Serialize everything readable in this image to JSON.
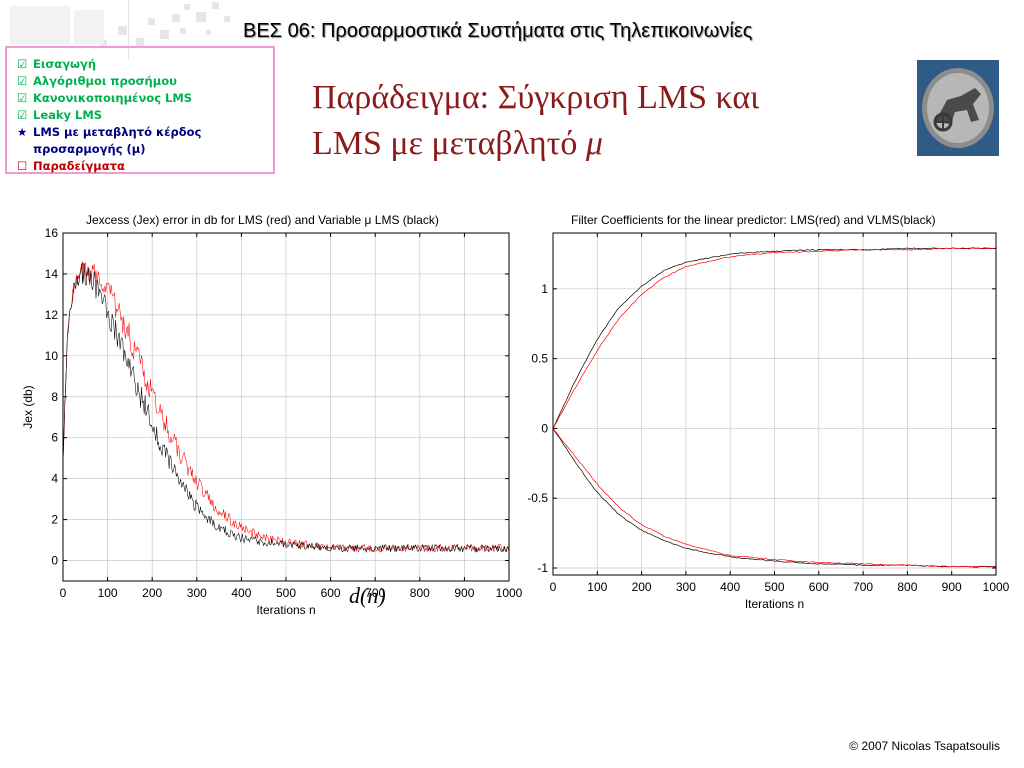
{
  "header": {
    "course_title": "ΒΕΣ 06: Προσαρμοστικά Συστήματα στις Τηλεπικοινωνίες"
  },
  "toc": {
    "items": [
      {
        "mark": "☑",
        "label": "Εισαγωγή",
        "state": "done"
      },
      {
        "mark": "☑",
        "label": "Αλγόριθμοι προσήμου",
        "state": "done"
      },
      {
        "mark": "☑",
        "label": "Κανονικοποιημένος LMS",
        "state": "done"
      },
      {
        "mark": "☑",
        "label": "Leaky LMS",
        "state": "done"
      },
      {
        "mark": "★",
        "label": "LMS με μεταβλητό κέρδος",
        "state": "current"
      },
      {
        "mark": "",
        "label": "προσαρμογής (μ)",
        "state": "current"
      },
      {
        "mark": "☐",
        "label": "Παραδείγματα",
        "state": "todo"
      }
    ]
  },
  "slide": {
    "title_line1": "Παράδειγμα: Σύγκριση LMS και",
    "title_line2": "LMS με μεταβλητό ",
    "title_mu": "μ"
  },
  "overlay_equation": "d(n)",
  "footer": {
    "copyright": "© 2007 Nicolas Tsapatsoulis"
  },
  "colors": {
    "title": "#8b1a1a",
    "toc_border": "#f29bd1",
    "lms": "#ff0000",
    "vlms": "#000000",
    "grid": "#c8c8c8"
  },
  "chart_data": [
    {
      "type": "line",
      "title": "Jexcess (Jex) error in db for LMS (red) and Variable μ LMS (black)",
      "xlabel": "Iterations n",
      "ylabel": "Jex (db)",
      "xlim": [
        0,
        1000
      ],
      "ylim": [
        -1,
        16
      ],
      "xticks": [
        0,
        100,
        200,
        300,
        400,
        500,
        600,
        700,
        800,
        900,
        1000
      ],
      "yticks": [
        0,
        2,
        4,
        6,
        8,
        10,
        12,
        14,
        16
      ],
      "grid": true,
      "series": [
        {
          "color": "#ff0000",
          "x": [
            0,
            10,
            25,
            50,
            75,
            100,
            150,
            200,
            250,
            300,
            350,
            400,
            450,
            500,
            600,
            700,
            800,
            900,
            1000
          ],
          "y": [
            5,
            11,
            13.5,
            14.3,
            14,
            13.3,
            10.9,
            8.1,
            5.7,
            3.8,
            2.4,
            1.6,
            1.1,
            0.9,
            0.6,
            0.6,
            0.6,
            0.6,
            0.6
          ]
        },
        {
          "color": "#000000",
          "x": [
            0,
            10,
            25,
            50,
            75,
            100,
            150,
            200,
            250,
            300,
            350,
            400,
            450,
            500,
            600,
            700,
            800,
            900,
            1000
          ],
          "y": [
            5,
            11,
            13.5,
            14.1,
            13.3,
            12.2,
            9.4,
            6.6,
            4.3,
            2.6,
            1.6,
            1.1,
            0.9,
            0.8,
            0.6,
            0.6,
            0.6,
            0.6,
            0.6
          ]
        }
      ]
    },
    {
      "type": "line",
      "title": "Filter Coefficients for the linear predictor: LMS(red) and VLMS(black)",
      "xlabel": "Iterations n",
      "ylabel": "",
      "xlim": [
        0,
        1000
      ],
      "ylim": [
        -1.05,
        1.4
      ],
      "xticks": [
        0,
        100,
        200,
        300,
        400,
        500,
        600,
        700,
        800,
        900,
        1000
      ],
      "yticks": [
        -1,
        -0.5,
        0,
        0.5,
        1
      ],
      "grid": true,
      "series": [
        {
          "color": "#000000",
          "x": [
            0,
            50,
            100,
            150,
            200,
            250,
            300,
            400,
            500,
            600,
            700,
            800,
            900,
            1000
          ],
          "y": [
            0,
            0.34,
            0.64,
            0.87,
            1.02,
            1.13,
            1.19,
            1.25,
            1.27,
            1.28,
            1.28,
            1.29,
            1.29,
            1.29
          ]
        },
        {
          "color": "#ff0000",
          "x": [
            0,
            50,
            100,
            150,
            200,
            250,
            300,
            400,
            500,
            600,
            700,
            800,
            900,
            1000
          ],
          "y": [
            0,
            0.29,
            0.56,
            0.79,
            0.96,
            1.08,
            1.16,
            1.23,
            1.26,
            1.27,
            1.28,
            1.28,
            1.29,
            1.29
          ]
        },
        {
          "color": "#000000",
          "x": [
            0,
            50,
            100,
            150,
            200,
            250,
            300,
            400,
            500,
            600,
            700,
            800,
            900,
            1000
          ],
          "y": [
            0,
            -0.24,
            -0.46,
            -0.62,
            -0.73,
            -0.8,
            -0.86,
            -0.92,
            -0.95,
            -0.97,
            -0.98,
            -0.98,
            -0.99,
            -0.99
          ]
        },
        {
          "color": "#ff0000",
          "x": [
            0,
            50,
            100,
            150,
            200,
            250,
            300,
            400,
            500,
            600,
            700,
            800,
            900,
            1000
          ],
          "y": [
            0,
            -0.2,
            -0.4,
            -0.57,
            -0.69,
            -0.77,
            -0.83,
            -0.91,
            -0.94,
            -0.96,
            -0.97,
            -0.98,
            -0.99,
            -0.99
          ]
        }
      ]
    }
  ]
}
